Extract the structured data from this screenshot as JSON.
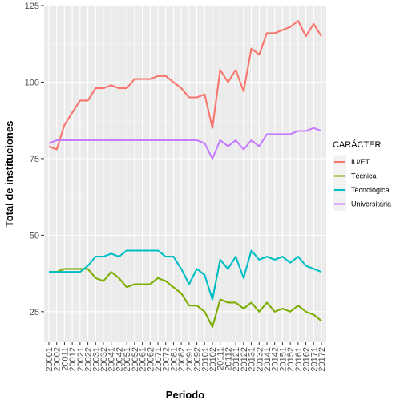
{
  "chart_data": {
    "type": "line",
    "title": "",
    "xlabel": "Periodo",
    "ylabel": "Total de instituciones",
    "ylim": [
      15,
      125
    ],
    "yticks": [
      25,
      50,
      75,
      100,
      125
    ],
    "grid": true,
    "legend": {
      "title": "CARÁCTER",
      "placement": "right"
    },
    "x": [
      "20001",
      "20002",
      "20011",
      "20012",
      "20021",
      "20022",
      "20031",
      "20032",
      "20041",
      "20042",
      "20051",
      "20052",
      "20061",
      "20062",
      "20071",
      "20072",
      "20081",
      "20082",
      "20091",
      "20092",
      "20101",
      "20102",
      "20111",
      "20112",
      "20121",
      "20122",
      "20131",
      "20132",
      "20141",
      "20142",
      "20151",
      "20152",
      "20161",
      "20162",
      "20171",
      "20172"
    ],
    "series": [
      {
        "name": "IU/ET",
        "color": "#F8766D",
        "values": [
          79,
          78,
          86,
          90,
          94,
          94,
          98,
          98,
          99,
          98,
          98,
          101,
          101,
          101,
          102,
          102,
          100,
          98,
          95,
          95,
          96,
          85,
          104,
          100,
          104,
          97,
          111,
          109,
          116,
          116,
          117,
          118,
          120,
          115,
          119,
          115
        ]
      },
      {
        "name": "Técnica",
        "color": "#7CAE00",
        "values": [
          38,
          38,
          39,
          39,
          39,
          39,
          36,
          35,
          38,
          36,
          33,
          34,
          34,
          34,
          36,
          35,
          33,
          31,
          27,
          27,
          25,
          20,
          29,
          28,
          28,
          26,
          28,
          25,
          28,
          25,
          26,
          25,
          27,
          25,
          24,
          22
        ]
      },
      {
        "name": "Tecnológica",
        "color": "#00BFC4",
        "values": [
          38,
          38,
          38,
          38,
          38,
          40,
          43,
          43,
          44,
          43,
          45,
          45,
          45,
          45,
          45,
          43,
          43,
          39,
          34,
          39,
          37,
          29,
          42,
          39,
          43,
          36,
          45,
          42,
          43,
          42,
          43,
          41,
          43,
          40,
          39,
          38
        ]
      },
      {
        "name": "Universitaria",
        "color": "#C77CFF",
        "values": [
          80,
          81,
          81,
          81,
          81,
          81,
          81,
          81,
          81,
          81,
          81,
          81,
          81,
          81,
          81,
          81,
          81,
          81,
          81,
          81,
          80,
          75,
          81,
          79,
          81,
          78,
          81,
          79,
          83,
          83,
          83,
          83,
          84,
          84,
          85,
          84
        ]
      }
    ]
  }
}
